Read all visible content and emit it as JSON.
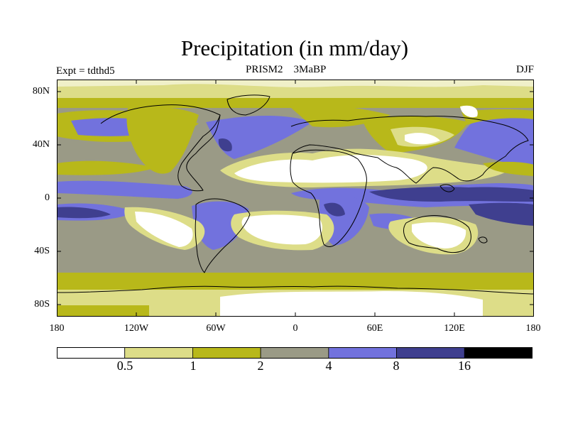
{
  "header": {
    "title": "Precipitation (in mm/day)",
    "experiment": "Expt = tdthd5",
    "center_left": "PRISM2",
    "center_right": "3MaBP",
    "season": "DJF"
  },
  "axes": {
    "y_labels": [
      "80N",
      "40N",
      "0",
      "40S",
      "80S"
    ],
    "x_labels": [
      "180",
      "120W",
      "60W",
      "0",
      "60E",
      "120E",
      "180"
    ]
  },
  "colorbar": {
    "labels": [
      "0.5",
      "1",
      "2",
      "4",
      "8",
      "16"
    ],
    "colors": [
      "#ffffff",
      "#dddd88",
      "#b8b81a",
      "#9a9a86",
      "#7272dd",
      "#3f3f8f",
      "#000000"
    ]
  },
  "map_colors": {
    "white": "#ffffff",
    "light": "#dddd88",
    "olive": "#b8b81a",
    "gray": "#9a9a86",
    "blue": "#7272dd",
    "navy": "#3f3f8f"
  }
}
